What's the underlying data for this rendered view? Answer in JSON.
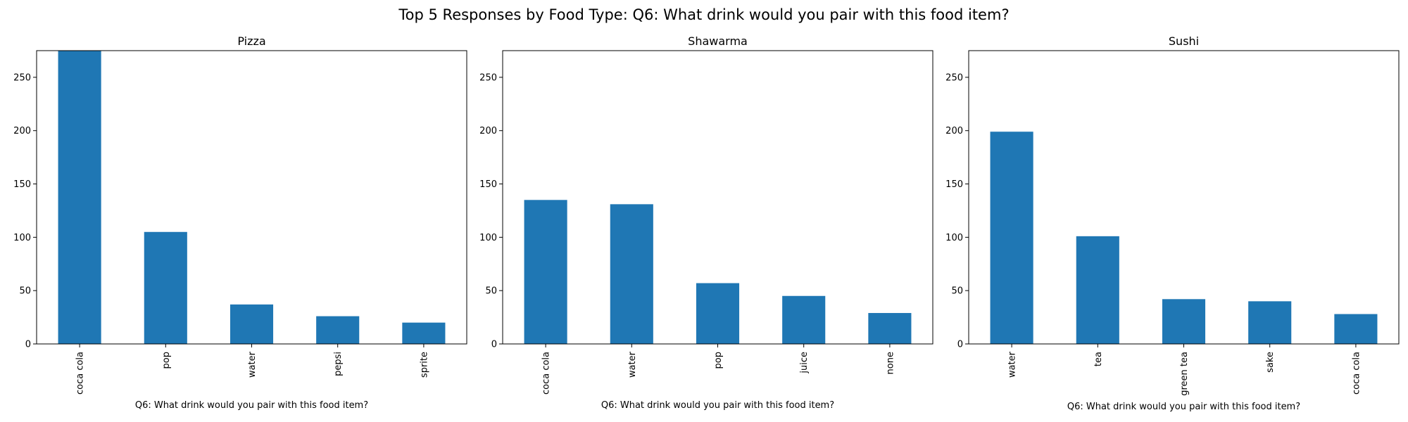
{
  "suptitle": "Top 5 Responses by Food Type: Q6: What drink would you pair with this food item?",
  "colors": {
    "bar": "#1f77b4",
    "axis": "#000000",
    "background": "#ffffff"
  },
  "chart_data": [
    {
      "type": "bar",
      "title": "Pizza",
      "categories": [
        "coca cola",
        "pop",
        "water",
        "pepsi",
        "sprite"
      ],
      "values": [
        275,
        105,
        37,
        26,
        20
      ],
      "xlabel": "Q6: What drink would you pair with this food item?",
      "ylabel": "",
      "ylim": [
        0,
        275
      ],
      "yticks": [
        0,
        50,
        100,
        150,
        200,
        250
      ],
      "grid": false
    },
    {
      "type": "bar",
      "title": "Shawarma",
      "categories": [
        "coca cola",
        "water",
        "pop",
        "juice",
        "none"
      ],
      "values": [
        135,
        131,
        57,
        45,
        29
      ],
      "xlabel": "Q6: What drink would you pair with this food item?",
      "ylabel": "",
      "ylim": [
        0,
        275
      ],
      "yticks": [
        0,
        50,
        100,
        150,
        200,
        250
      ],
      "grid": false
    },
    {
      "type": "bar",
      "title": "Sushi",
      "categories": [
        "water",
        "tea",
        "green tea",
        "sake",
        "coca cola"
      ],
      "values": [
        199,
        101,
        42,
        40,
        28
      ],
      "xlabel": "Q6: What drink would you pair with this food item?",
      "ylabel": "",
      "ylim": [
        0,
        275
      ],
      "yticks": [
        0,
        50,
        100,
        150,
        200,
        250
      ],
      "grid": false
    }
  ]
}
